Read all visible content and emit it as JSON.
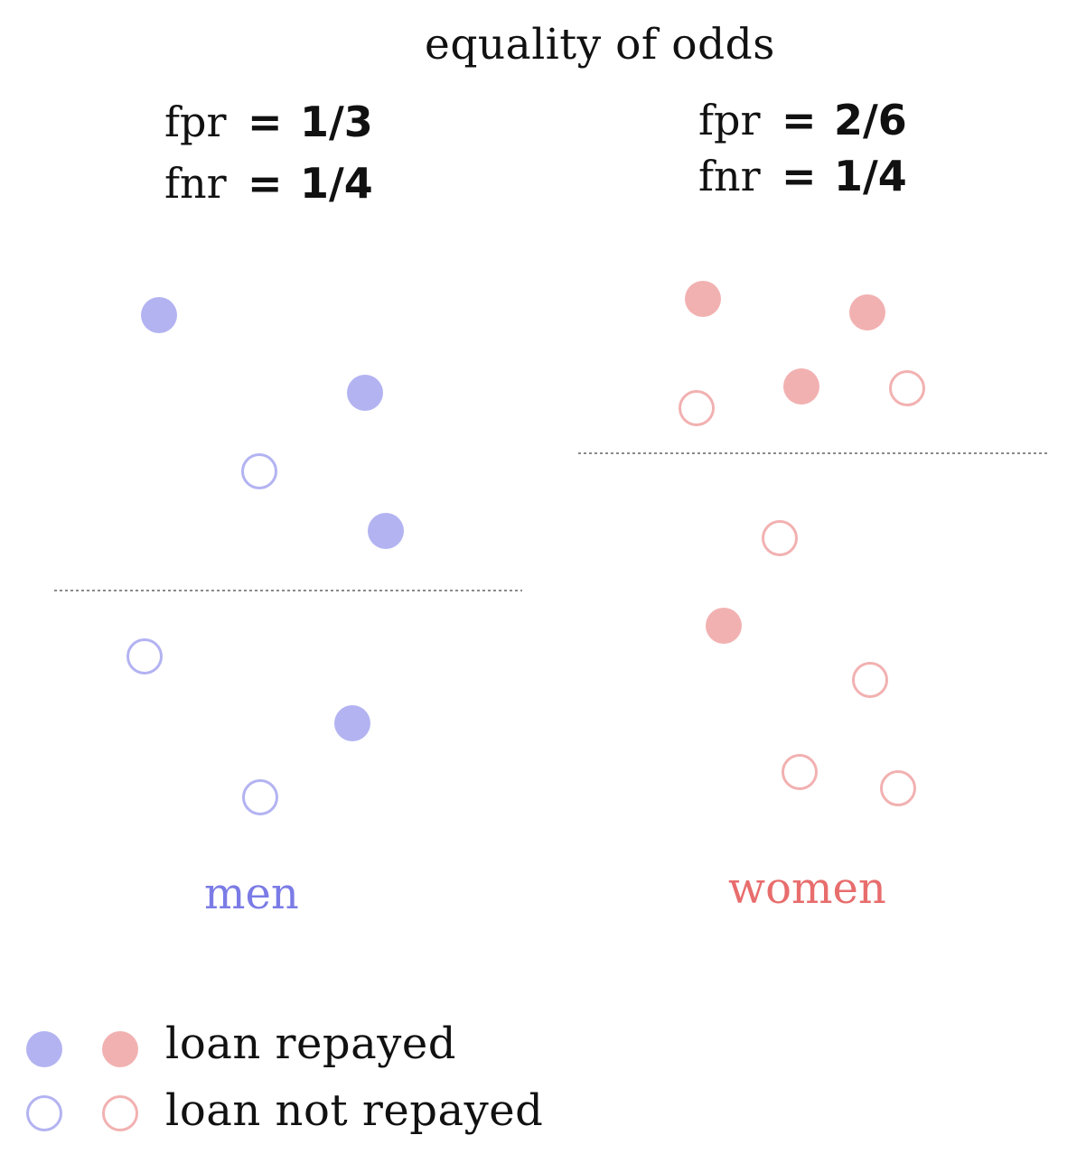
{
  "title": "equality of odds",
  "men": {
    "label": "men",
    "fpr": {
      "key": "fpr",
      "eq": "=",
      "value": "1/3"
    },
    "fnr": {
      "key": "fnr",
      "eq": "=",
      "value": "1/4"
    },
    "color": "#7b7be6",
    "fill": "#b3b3f2",
    "points": [
      {
        "repaid": true
      },
      {
        "repaid": true
      },
      {
        "repaid": false
      },
      {
        "repaid": true
      },
      {
        "repaid": false
      },
      {
        "repaid": true
      },
      {
        "repaid": false
      }
    ]
  },
  "women": {
    "label": "women",
    "fpr": {
      "key": "fpr",
      "eq": "=",
      "value": "2/6"
    },
    "fnr": {
      "key": "fnr",
      "eq": "=",
      "value": "1/4"
    },
    "color": "#e86d6d",
    "fill": "#f2b1b1",
    "points": [
      {
        "repaid": true
      },
      {
        "repaid": true
      },
      {
        "repaid": true
      },
      {
        "repaid": false
      },
      {
        "repaid": false
      },
      {
        "repaid": false
      },
      {
        "repaid": true
      },
      {
        "repaid": false
      },
      {
        "repaid": false
      },
      {
        "repaid": false
      }
    ]
  },
  "legend": {
    "repaid_label": "loan repayed",
    "not_repaid_label": "loan not repayed"
  }
}
